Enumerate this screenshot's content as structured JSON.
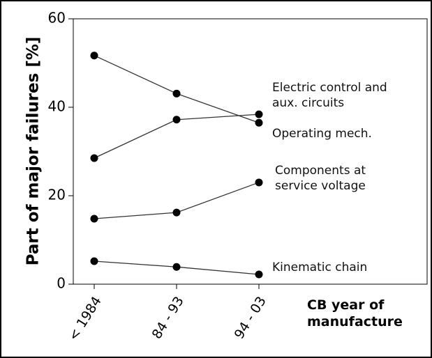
{
  "chart_data": {
    "type": "line",
    "categories": [
      "< 1984",
      "84 - 93",
      "94 - 03"
    ],
    "series": [
      {
        "name": "Electric control and aux. circuits",
        "color": "#000000",
        "values": [
          51.7,
          43.1,
          36.5
        ]
      },
      {
        "name": "Operating mech.",
        "color": "#000000",
        "values": [
          28.5,
          37.2,
          38.4
        ]
      },
      {
        "name": "Components at service voltage",
        "color": "#000000",
        "values": [
          14.8,
          16.2,
          23
        ]
      },
      {
        "name": "Kinematic chain",
        "color": "#000000",
        "values": [
          5.2,
          3.9,
          2.2
        ]
      }
    ],
    "y_label": "Part of major failures [%]",
    "x_label": "CB year of manufacture",
    "ylim": [
      0,
      60
    ],
    "yticks": [
      0,
      20,
      40,
      60
    ]
  }
}
